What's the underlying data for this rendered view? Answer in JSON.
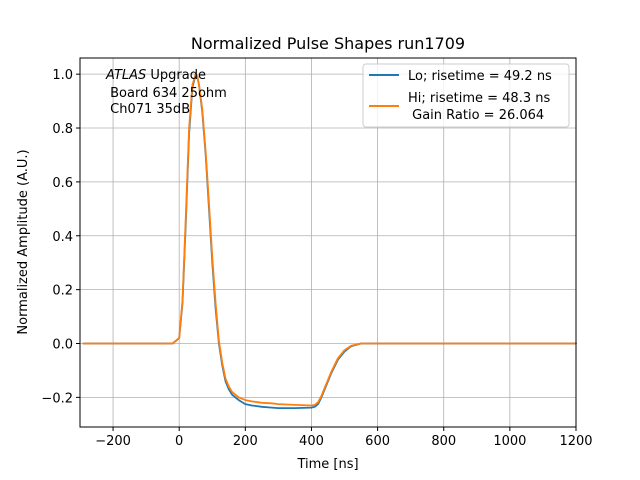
{
  "chart_data": {
    "type": "line",
    "title": "Normalized Pulse Shapes run1709",
    "xlabel": "Time [ns]",
    "ylabel": "Normalized Amplitude (A.U.)",
    "xlim": [
      -300,
      1200
    ],
    "ylim": [
      -0.31,
      1.06
    ],
    "xticks": [
      -200,
      0,
      200,
      400,
      600,
      800,
      1000,
      1200
    ],
    "yticks": [
      -0.2,
      0.0,
      0.2,
      0.4,
      0.6,
      0.8,
      1.0
    ],
    "xtick_labels": [
      "−200",
      "0",
      "200",
      "400",
      "600",
      "800",
      "1000",
      "1200"
    ],
    "ytick_labels": [
      "−0.2",
      "0.0",
      "0.2",
      "0.4",
      "0.6",
      "0.8",
      "1.0"
    ],
    "grid": true,
    "legend_position": "top-right",
    "annotation": {
      "italic_part": "ATLAS",
      "line1_rest": " Upgrade",
      "line2": " Board 634 25ohm",
      "line3": " Ch071 35dB"
    },
    "series": [
      {
        "name": "Lo; risetime = 49.2 ns",
        "color": "#1f77b4",
        "x": [
          -290,
          -200,
          -100,
          -20,
          0,
          10,
          20,
          30,
          40,
          50,
          55,
          60,
          70,
          80,
          90,
          100,
          110,
          120,
          130,
          140,
          150,
          160,
          170,
          180,
          200,
          220,
          250,
          280,
          300,
          350,
          400,
          410,
          420,
          430,
          440,
          450,
          460,
          480,
          500,
          520,
          550,
          580,
          600,
          700,
          800,
          900,
          1000,
          1100,
          1200
        ],
        "y": [
          0.0,
          0.0,
          0.0,
          0.0,
          0.02,
          0.15,
          0.45,
          0.78,
          0.95,
          1.0,
          0.99,
          0.96,
          0.86,
          0.7,
          0.5,
          0.3,
          0.13,
          0.0,
          -0.08,
          -0.14,
          -0.17,
          -0.19,
          -0.2,
          -0.21,
          -0.225,
          -0.23,
          -0.235,
          -0.238,
          -0.24,
          -0.24,
          -0.238,
          -0.235,
          -0.225,
          -0.2,
          -0.17,
          -0.14,
          -0.11,
          -0.06,
          -0.03,
          -0.01,
          0.0,
          0.0,
          0.0,
          0.0,
          0.0,
          0.0,
          0.0,
          0.0,
          0.0
        ]
      },
      {
        "name": "Hi; risetime = 48.3 ns\n Gain Ratio = 26.064",
        "color": "#ff7f0e",
        "x": [
          -290,
          -200,
          -100,
          -20,
          0,
          10,
          20,
          30,
          40,
          50,
          55,
          60,
          70,
          80,
          90,
          100,
          110,
          120,
          130,
          140,
          150,
          160,
          170,
          180,
          200,
          220,
          250,
          280,
          300,
          350,
          400,
          410,
          420,
          430,
          440,
          450,
          460,
          480,
          500,
          520,
          550,
          580,
          600,
          700,
          800,
          900,
          1000,
          1100,
          1200
        ],
        "y": [
          0.0,
          0.0,
          0.0,
          0.0,
          0.02,
          0.16,
          0.47,
          0.8,
          0.96,
          1.0,
          0.99,
          0.96,
          0.87,
          0.71,
          0.52,
          0.32,
          0.15,
          0.01,
          -0.07,
          -0.13,
          -0.16,
          -0.18,
          -0.19,
          -0.2,
          -0.21,
          -0.215,
          -0.22,
          -0.222,
          -0.225,
          -0.228,
          -0.23,
          -0.228,
          -0.218,
          -0.195,
          -0.165,
          -0.135,
          -0.105,
          -0.055,
          -0.025,
          -0.008,
          0.0,
          0.0,
          0.0,
          0.0,
          0.0,
          0.0,
          0.0,
          0.0,
          0.0
        ]
      }
    ]
  }
}
